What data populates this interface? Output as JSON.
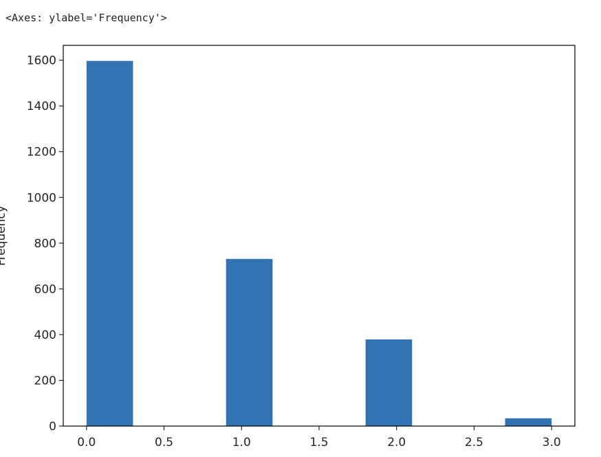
{
  "output_text": "<Axes: ylabel='Frequency'>",
  "chart_data": {
    "type": "bar",
    "subtype": "histogram",
    "title": "",
    "xlabel": "",
    "ylabel": "Frequency",
    "xlim": [
      -0.15,
      3.15
    ],
    "ylim": [
      0,
      1665
    ],
    "bar_color": "#3274b3",
    "bins": [
      {
        "x0": 0.0,
        "x1": 0.3,
        "count": 1597
      },
      {
        "x0": 0.3,
        "x1": 0.6,
        "count": 0
      },
      {
        "x0": 0.6,
        "x1": 0.9,
        "count": 0
      },
      {
        "x0": 0.9,
        "x1": 1.2,
        "count": 731
      },
      {
        "x0": 1.2,
        "x1": 1.5,
        "count": 0
      },
      {
        "x0": 1.5,
        "x1": 1.8,
        "count": 0
      },
      {
        "x0": 1.8,
        "x1": 2.1,
        "count": 379
      },
      {
        "x0": 2.1,
        "x1": 2.4,
        "count": 0
      },
      {
        "x0": 2.4,
        "x1": 2.7,
        "count": 0
      },
      {
        "x0": 2.7,
        "x1": 3.0,
        "count": 34
      }
    ],
    "x_ticks": [
      {
        "value": 0.0,
        "label": "0.0"
      },
      {
        "value": 0.5,
        "label": "0.5"
      },
      {
        "value": 1.0,
        "label": "1.0"
      },
      {
        "value": 1.5,
        "label": "1.5"
      },
      {
        "value": 2.0,
        "label": "2.0"
      },
      {
        "value": 2.5,
        "label": "2.5"
      },
      {
        "value": 3.0,
        "label": "3.0"
      }
    ],
    "y_ticks": [
      {
        "value": 0,
        "label": "0"
      },
      {
        "value": 200,
        "label": "200"
      },
      {
        "value": 400,
        "label": "400"
      },
      {
        "value": 600,
        "label": "600"
      },
      {
        "value": 800,
        "label": "800"
      },
      {
        "value": 1000,
        "label": "1000"
      },
      {
        "value": 1200,
        "label": "1200"
      },
      {
        "value": 1400,
        "label": "1400"
      },
      {
        "value": 1600,
        "label": "1600"
      }
    ]
  }
}
